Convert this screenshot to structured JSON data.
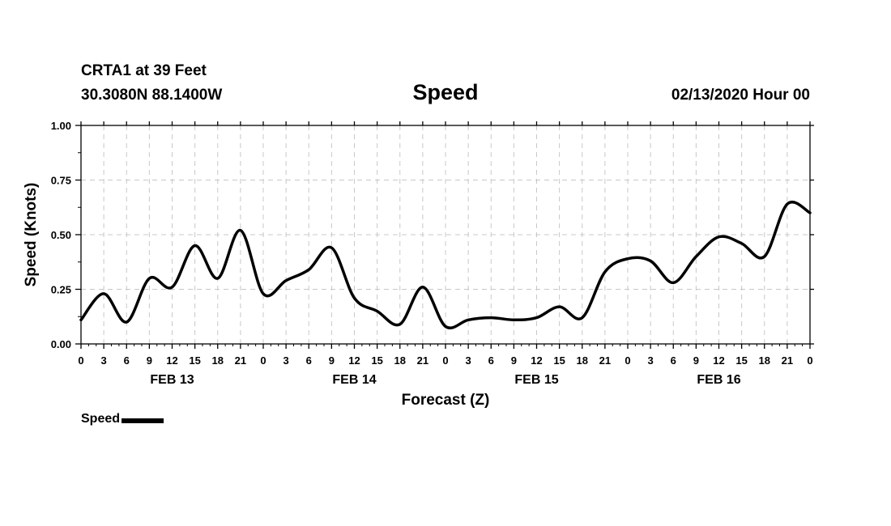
{
  "header": {
    "station": "CRTA1 at 39 Feet",
    "coordinates": "30.3080N 88.1400W",
    "title": "Speed",
    "issued": "02/13/2020 Hour 00"
  },
  "legend": {
    "label": "Speed"
  },
  "chart_data": {
    "type": "line",
    "title": "Speed",
    "xlabel": "Forecast (Z)",
    "ylabel": "Speed (Knots)",
    "x_unit": "forecast hours (Z)",
    "xlim": [
      0,
      96
    ],
    "ylim": [
      0,
      1
    ],
    "y_ticks": [
      "0.00",
      "0.25",
      "0.50",
      "0.75",
      "1.00"
    ],
    "x_tick_labels": [
      "0",
      "3",
      "6",
      "9",
      "12",
      "15",
      "18",
      "21",
      "0",
      "3",
      "6",
      "9",
      "12",
      "15",
      "18",
      "21",
      "0",
      "3",
      "6",
      "9",
      "12",
      "15",
      "18",
      "21",
      "0",
      "3",
      "6",
      "9",
      "12",
      "15",
      "18",
      "21",
      "0"
    ],
    "date_labels": [
      {
        "label": "FEB 13",
        "hour": 12
      },
      {
        "label": "FEB 14",
        "hour": 36
      },
      {
        "label": "FEB 15",
        "hour": 60
      },
      {
        "label": "FEB 16",
        "hour": 84
      }
    ],
    "grid": true,
    "legend_position": "bottom-left",
    "series": [
      {
        "name": "Speed",
        "color": "#000000",
        "x": [
          0,
          3,
          6,
          9,
          12,
          15,
          18,
          21,
          24,
          27,
          30,
          33,
          36,
          39,
          42,
          45,
          48,
          51,
          54,
          57,
          60,
          63,
          66,
          69,
          72,
          75,
          78,
          81,
          84,
          87,
          90,
          93,
          96
        ],
        "values": [
          0.11,
          0.23,
          0.1,
          0.3,
          0.26,
          0.45,
          0.3,
          0.52,
          0.23,
          0.29,
          0.34,
          0.44,
          0.21,
          0.15,
          0.09,
          0.26,
          0.08,
          0.11,
          0.12,
          0.11,
          0.12,
          0.17,
          0.12,
          0.33,
          0.39,
          0.38,
          0.28,
          0.4,
          0.49,
          0.46,
          0.4,
          0.64,
          0.6
        ]
      }
    ]
  }
}
